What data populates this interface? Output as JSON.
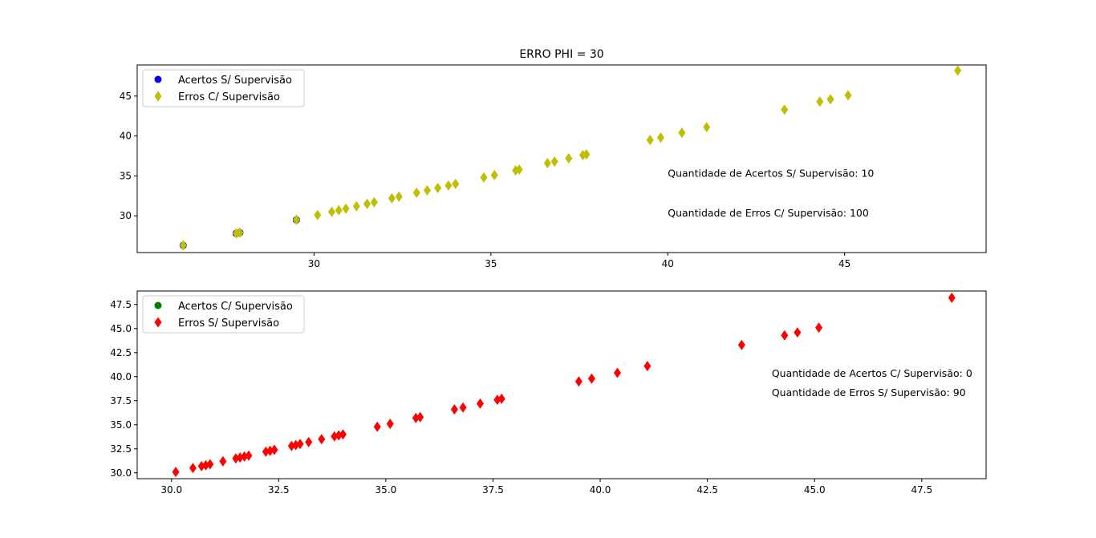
{
  "chart_data": [
    {
      "type": "scatter",
      "title": "ERRO PHI = 30",
      "xlim": [
        25.0,
        49.0
      ],
      "ylim": [
        25.4,
        48.9
      ],
      "xticks": [
        30,
        35,
        40,
        45
      ],
      "yticks": [
        30,
        35,
        40,
        45
      ],
      "grid": false,
      "legend": "top-left",
      "series": [
        {
          "name": "Acertos S/ Supervisão",
          "marker": "circle",
          "color": "#0000ff",
          "x": [
            26.3,
            27.8,
            27.8,
            27.9,
            29.5,
            26.3,
            27.8,
            27.9,
            29.5,
            27.8
          ],
          "y": [
            26.3,
            27.8,
            27.8,
            27.9,
            29.5,
            26.3,
            27.8,
            27.9,
            29.5,
            27.8
          ]
        },
        {
          "name": "Erros C/ Supervisão",
          "marker": "diamond",
          "color": "#bfbf00",
          "x": [
            26.3,
            26.3,
            27.8,
            27.8,
            27.9,
            27.9,
            29.5,
            29.5,
            30.1,
            30.5,
            30.7,
            30.9,
            31.2,
            31.5,
            31.7,
            32.2,
            32.4,
            32.9,
            33.2,
            33.5,
            33.8,
            34.0,
            34.8,
            35.1,
            35.7,
            35.8,
            36.6,
            36.8,
            37.2,
            37.6,
            37.7,
            39.5,
            39.8,
            40.4,
            41.1,
            43.3,
            44.3,
            44.6,
            45.1,
            48.2
          ],
          "y": [
            26.3,
            26.3,
            27.8,
            27.8,
            27.9,
            27.9,
            29.5,
            29.5,
            30.1,
            30.5,
            30.7,
            30.9,
            31.2,
            31.5,
            31.7,
            32.2,
            32.4,
            32.9,
            33.2,
            33.5,
            33.8,
            34.0,
            34.8,
            35.1,
            35.7,
            35.8,
            36.6,
            36.8,
            37.2,
            37.6,
            37.7,
            39.5,
            39.8,
            40.4,
            41.1,
            43.3,
            44.3,
            44.6,
            45.1,
            48.2
          ]
        }
      ],
      "annotations": [
        {
          "text": "Quantidade de Acertos S/ Supervisão: 10",
          "x": 40.0,
          "y": 35.4
        },
        {
          "text": "Quantidade de Erros C/ Supervisão: 100",
          "x": 40.0,
          "y": 30.4
        }
      ]
    },
    {
      "type": "scatter",
      "title": "",
      "xlim": [
        29.2,
        49.0
      ],
      "ylim": [
        29.4,
        48.9
      ],
      "xticks": [
        30.0,
        32.5,
        35.0,
        37.5,
        40.0,
        42.5,
        45.0,
        47.5
      ],
      "xtick_labels": [
        "30.0",
        "32.5",
        "35.0",
        "37.5",
        "40.0",
        "42.5",
        "45.0",
        "47.5"
      ],
      "yticks": [
        30.0,
        32.5,
        35.0,
        37.5,
        40.0,
        42.5,
        45.0,
        47.5
      ],
      "ytick_labels": [
        "30.0",
        "32.5",
        "35.0",
        "37.5",
        "40.0",
        "42.5",
        "45.0",
        "47.5"
      ],
      "grid": false,
      "legend": "top-left",
      "series": [
        {
          "name": "Acertos C/ Supervisão",
          "marker": "circle",
          "color": "#008000",
          "x": [],
          "y": []
        },
        {
          "name": "Erros S/ Supervisão",
          "marker": "diamond",
          "color": "#ff0000",
          "x": [
            30.1,
            30.5,
            30.7,
            30.8,
            30.9,
            31.2,
            31.5,
            31.6,
            31.7,
            31.8,
            32.2,
            32.3,
            32.4,
            32.8,
            32.9,
            33.0,
            33.2,
            33.5,
            33.8,
            33.9,
            34.0,
            34.8,
            35.1,
            35.7,
            35.8,
            36.6,
            36.8,
            37.2,
            37.6,
            37.7,
            39.5,
            39.8,
            40.4,
            41.1,
            43.3,
            44.3,
            44.6,
            45.1,
            48.2
          ],
          "y": [
            30.1,
            30.5,
            30.7,
            30.8,
            30.9,
            31.2,
            31.5,
            31.6,
            31.7,
            31.8,
            32.2,
            32.3,
            32.4,
            32.8,
            32.9,
            33.0,
            33.2,
            33.5,
            33.8,
            33.9,
            34.0,
            34.8,
            35.1,
            35.7,
            35.8,
            36.6,
            36.8,
            37.2,
            37.6,
            37.7,
            39.5,
            39.8,
            40.4,
            41.1,
            43.3,
            44.3,
            44.6,
            45.1,
            48.2
          ]
        }
      ],
      "annotations": [
        {
          "text": "Quantidade de Acertos C/ Supervisão: 0",
          "x": 44.0,
          "y": 40.4
        },
        {
          "text": "Quantidade de Erros S/ Supervisão: 90",
          "x": 44.0,
          "y": 38.4
        }
      ]
    }
  ]
}
